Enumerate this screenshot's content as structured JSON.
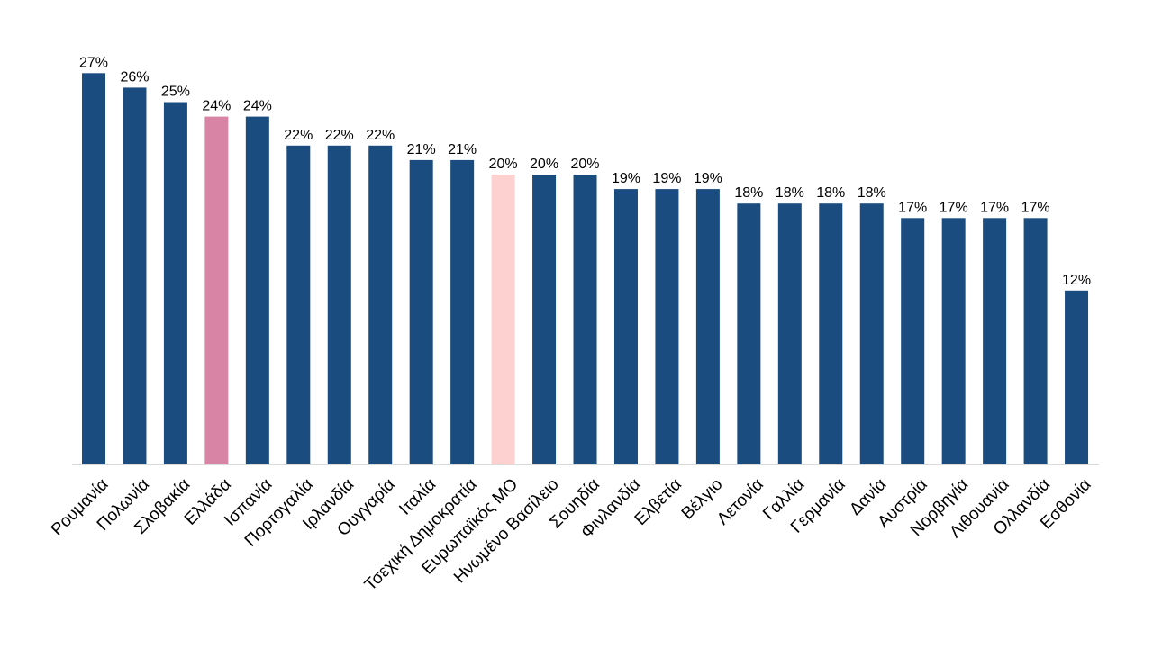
{
  "chart_data": {
    "type": "bar",
    "title": "",
    "xlabel": "",
    "ylabel": "",
    "ylim": [
      0,
      27
    ],
    "grid": false,
    "categories": [
      "Ρουμανία",
      "Πολωνία",
      "Σλοβακία",
      "Ελλάδα",
      "Ισπανία",
      "Πορτογαλία",
      "Ιρλανδία",
      "Ουγγαρία",
      "Ιταλία",
      "Τσεχική Δημοκρατία",
      "Ευρωπαϊκός ΜΟ",
      "Ηνωμένο Βασίλειο",
      "Σουηδία",
      "Φινλανδία",
      "Ελβετία",
      "Βέλγιο",
      "Λετονία",
      "Γαλλία",
      "Γερμανία",
      "Δανία",
      "Αυστρία",
      "Νορβηγία",
      "Λιθουανία",
      "Ολλανδία",
      "Εσθονία"
    ],
    "values": [
      27,
      26,
      25,
      24,
      24,
      22,
      22,
      22,
      21,
      21,
      20,
      20,
      20,
      19,
      19,
      19,
      18,
      18,
      18,
      18,
      17,
      17,
      17,
      17,
      12
    ],
    "value_labels": [
      "27%",
      "26%",
      "25%",
      "24%",
      "24%",
      "22%",
      "22%",
      "22%",
      "21%",
      "21%",
      "20%",
      "20%",
      "20%",
      "19%",
      "19%",
      "19%",
      "18%",
      "18%",
      "18%",
      "18%",
      "17%",
      "17%",
      "17%",
      "17%",
      "12%"
    ],
    "colors": {
      "default": "#1b4c7f",
      "highlights": {
        "Ελλάδα": "#d884a4",
        "Ευρωπαϊκός ΜΟ": "#fcd1d0"
      },
      "baseline": "#d9d9d9"
    }
  }
}
